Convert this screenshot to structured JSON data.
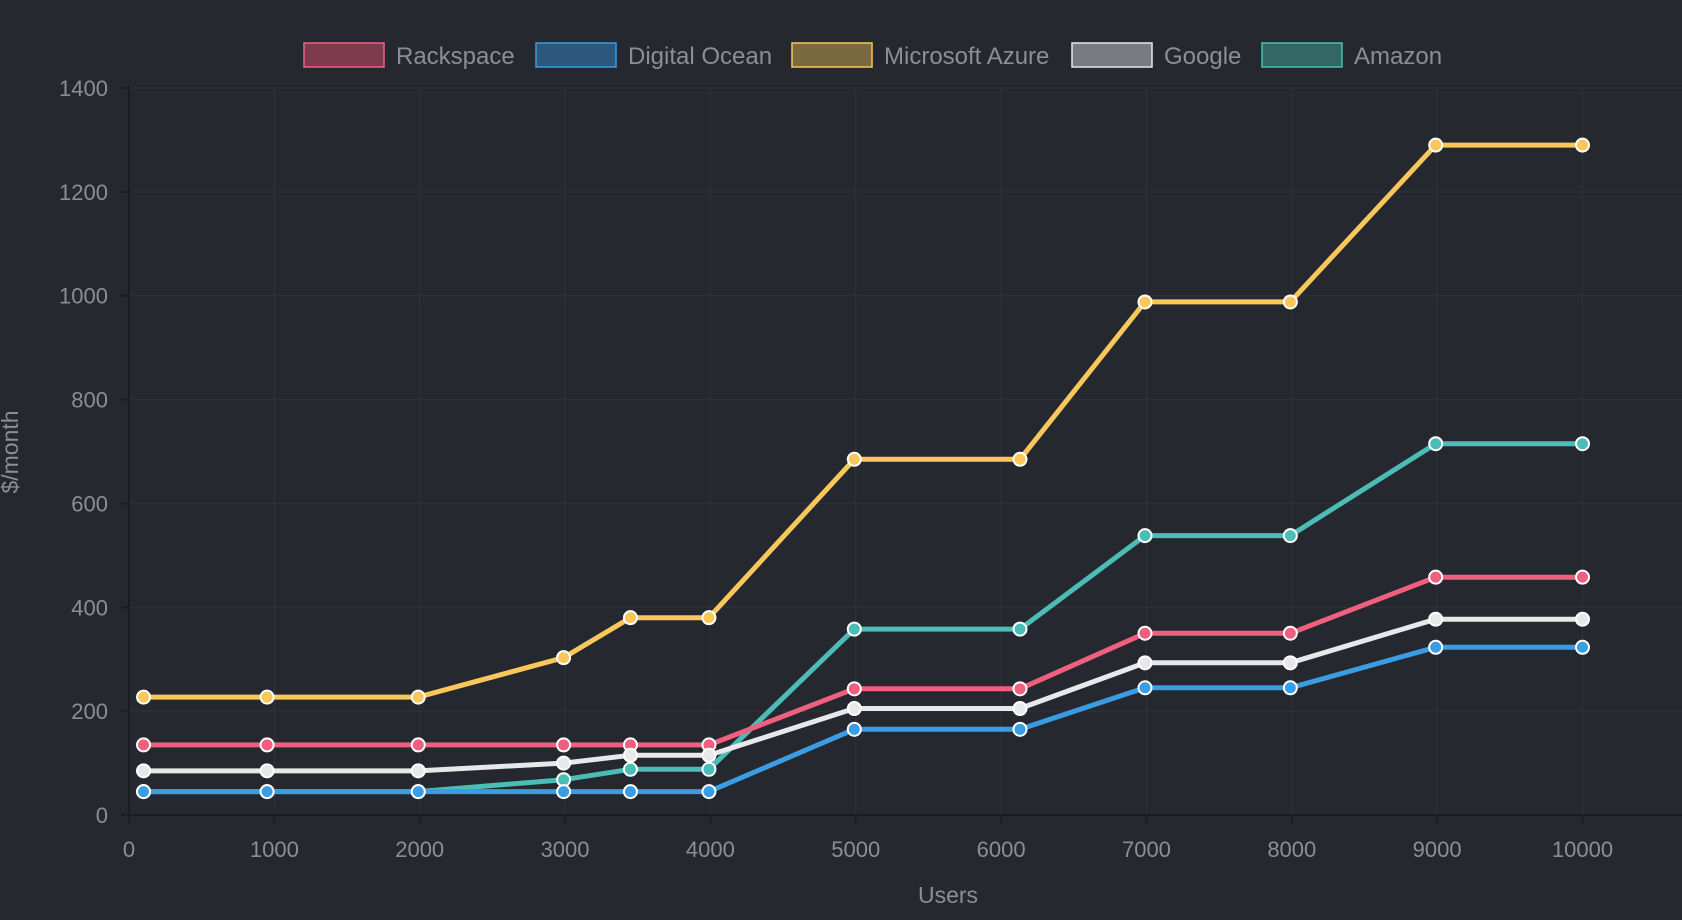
{
  "chart_data": {
    "type": "line",
    "xlabel": "Users",
    "ylabel": "$/month",
    "xlim": [
      0,
      10700
    ],
    "ylim": [
      0,
      1400
    ],
    "x_ticks": [
      0,
      1000,
      2000,
      3000,
      4000,
      5000,
      6000,
      7000,
      8000,
      9000,
      10000
    ],
    "x_tick_labels": [
      "0",
      "1000",
      "2000",
      "3000",
      "4000",
      "5000",
      "6000",
      "7000",
      "8000",
      "9000",
      "10000"
    ],
    "y_ticks": [
      0,
      200,
      400,
      600,
      800,
      1000,
      1200,
      1400
    ],
    "y_tick_labels": [
      "0",
      "200",
      "400",
      "600",
      "800",
      "1000",
      "1200",
      "1400"
    ],
    "grid": true,
    "legend_position": "top-center",
    "background_color": "#262830",
    "series": [
      {
        "name": "Rackspace",
        "color": "#f0607e",
        "legend_fill": "#7d3c4e",
        "x": [
          100,
          950,
          1990,
          2990,
          3450,
          3990,
          4990,
          6130,
          6990,
          7990,
          8990,
          10000
        ],
        "values": [
          135,
          135,
          135,
          135,
          135,
          135,
          243,
          243,
          350,
          350,
          458,
          458
        ]
      },
      {
        "name": "Digital Ocean",
        "color": "#3a9ce3",
        "legend_fill": "#2d587e",
        "x": [
          100,
          950,
          1990,
          2990,
          3450,
          3990,
          4990,
          6130,
          6990,
          7990,
          8990,
          10000
        ],
        "values": [
          45,
          45,
          45,
          45,
          45,
          45,
          165,
          165,
          245,
          245,
          323,
          323
        ]
      },
      {
        "name": "Microsoft Azure",
        "color": "#f9c75a",
        "legend_fill": "#7b693f",
        "x": [
          100,
          950,
          1990,
          2990,
          3450,
          3990,
          4990,
          6130,
          6990,
          7990,
          8990,
          10000
        ],
        "values": [
          227,
          227,
          227,
          303,
          380,
          380,
          685,
          685,
          988,
          988,
          1290,
          1290
        ]
      },
      {
        "name": "Google",
        "color": "#e8e8ea",
        "legend_fill": "#797b82",
        "x": [
          100,
          950,
          1990,
          2990,
          3450,
          3990,
          4990,
          6130,
          6990,
          7990,
          8990,
          10000
        ],
        "values": [
          85,
          85,
          85,
          100,
          115,
          115,
          205,
          205,
          293,
          293,
          377,
          377
        ]
      },
      {
        "name": "Amazon",
        "color": "#4bbdb6",
        "legend_fill": "#336763",
        "x": [
          100,
          950,
          1990,
          2990,
          3450,
          3990,
          4990,
          6130,
          6990,
          7990,
          8990,
          10000
        ],
        "values": [
          45,
          45,
          45,
          68,
          88,
          88,
          358,
          358,
          538,
          538,
          715,
          715
        ]
      }
    ]
  }
}
